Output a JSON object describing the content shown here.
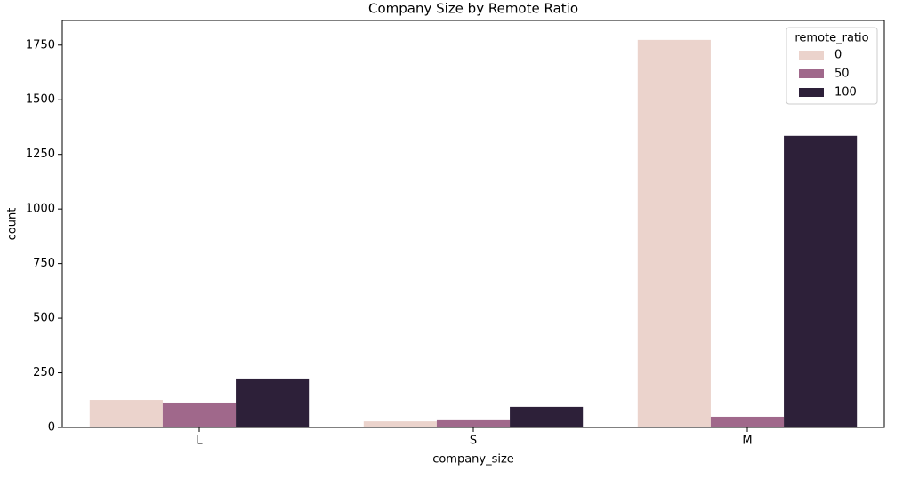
{
  "chart_data": {
    "type": "bar",
    "title": "Company Size by Remote Ratio",
    "x_label": "company_size",
    "y_label": "count",
    "categories": [
      "L",
      "S",
      "M"
    ],
    "legend_title": "remote_ratio",
    "legend": "upper right",
    "series": [
      {
        "name": "0",
        "color": "#ebd3cc",
        "values": [
          126,
          28,
          1774
        ]
      },
      {
        "name": "50",
        "color": "#a0688b",
        "values": [
          114,
          33,
          49
        ]
      },
      {
        "name": "100",
        "color": "#2d2039",
        "values": [
          224,
          94,
          1335
        ]
      }
    ],
    "ylim": [
      0,
      1863
    ],
    "yticks": [
      0,
      250,
      500,
      750,
      1000,
      1250,
      1500,
      1750
    ]
  }
}
